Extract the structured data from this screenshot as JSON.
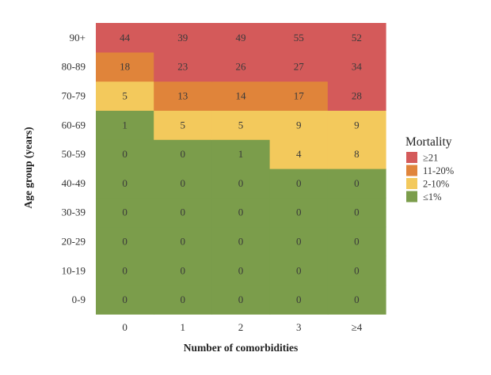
{
  "chart_data": {
    "type": "heatmap",
    "title": "",
    "xlabel": "Number of comorbidities",
    "ylabel": "Age group (years)",
    "x_categories": [
      "0",
      "1",
      "2",
      "3",
      "≥4"
    ],
    "y_categories": [
      "0-9",
      "10-19",
      "20-29",
      "30-39",
      "40-49",
      "50-59",
      "60-69",
      "70-79",
      "80-89",
      "90+"
    ],
    "values": [
      [
        0,
        0,
        0,
        0,
        0
      ],
      [
        0,
        0,
        0,
        0,
        0
      ],
      [
        0,
        0,
        0,
        0,
        0
      ],
      [
        0,
        0,
        0,
        0,
        0
      ],
      [
        0,
        0,
        0,
        0,
        0
      ],
      [
        0,
        0,
        1,
        4,
        8
      ],
      [
        1,
        5,
        5,
        9,
        9
      ],
      [
        5,
        13,
        14,
        17,
        28
      ],
      [
        18,
        23,
        26,
        27,
        34
      ],
      [
        44,
        39,
        49,
        55,
        52
      ]
    ],
    "color_bins": [
      {
        "label": "≥21",
        "min": 21,
        "max": 1000,
        "color": "#d45a5a"
      },
      {
        "label": "11-20%",
        "min": 11,
        "max": 20,
        "color": "#e0843a"
      },
      {
        "label": "2-10%",
        "min": 2,
        "max": 10,
        "color": "#f3c95c"
      },
      {
        "label": "≤1%",
        "min": -1000,
        "max": 1,
        "color": "#7b9d4b"
      }
    ],
    "legend": {
      "title": "Mortality",
      "position": "right"
    },
    "grid": false
  }
}
